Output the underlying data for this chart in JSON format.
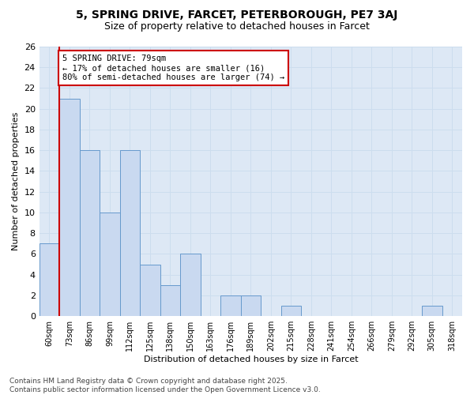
{
  "title_line1": "5, SPRING DRIVE, FARCET, PETERBOROUGH, PE7 3AJ",
  "title_line2": "Size of property relative to detached houses in Farcet",
  "xlabel": "Distribution of detached houses by size in Farcet",
  "ylabel": "Number of detached properties",
  "categories": [
    "60sqm",
    "73sqm",
    "86sqm",
    "99sqm",
    "112sqm",
    "125sqm",
    "138sqm",
    "150sqm",
    "163sqm",
    "176sqm",
    "189sqm",
    "202sqm",
    "215sqm",
    "228sqm",
    "241sqm",
    "254sqm",
    "266sqm",
    "279sqm",
    "292sqm",
    "305sqm",
    "318sqm"
  ],
  "values": [
    7,
    21,
    16,
    10,
    16,
    5,
    3,
    6,
    0,
    2,
    2,
    0,
    1,
    0,
    0,
    0,
    0,
    0,
    0,
    1,
    0
  ],
  "bar_color": "#c9d9f0",
  "bar_edge_color": "#6699cc",
  "red_line_x": 0.5,
  "ylim": [
    0,
    26
  ],
  "yticks": [
    0,
    2,
    4,
    6,
    8,
    10,
    12,
    14,
    16,
    18,
    20,
    22,
    24,
    26
  ],
  "annotation_text": "5 SPRING DRIVE: 79sqm\n← 17% of detached houses are smaller (16)\n80% of semi-detached houses are larger (74) →",
  "annotation_box_color": "#ffffff",
  "annotation_box_edge": "#cc0000",
  "footer": "Contains HM Land Registry data © Crown copyright and database right 2025.\nContains public sector information licensed under the Open Government Licence v3.0.",
  "grid_color": "#ccddee",
  "bg_color": "#dde8f5"
}
